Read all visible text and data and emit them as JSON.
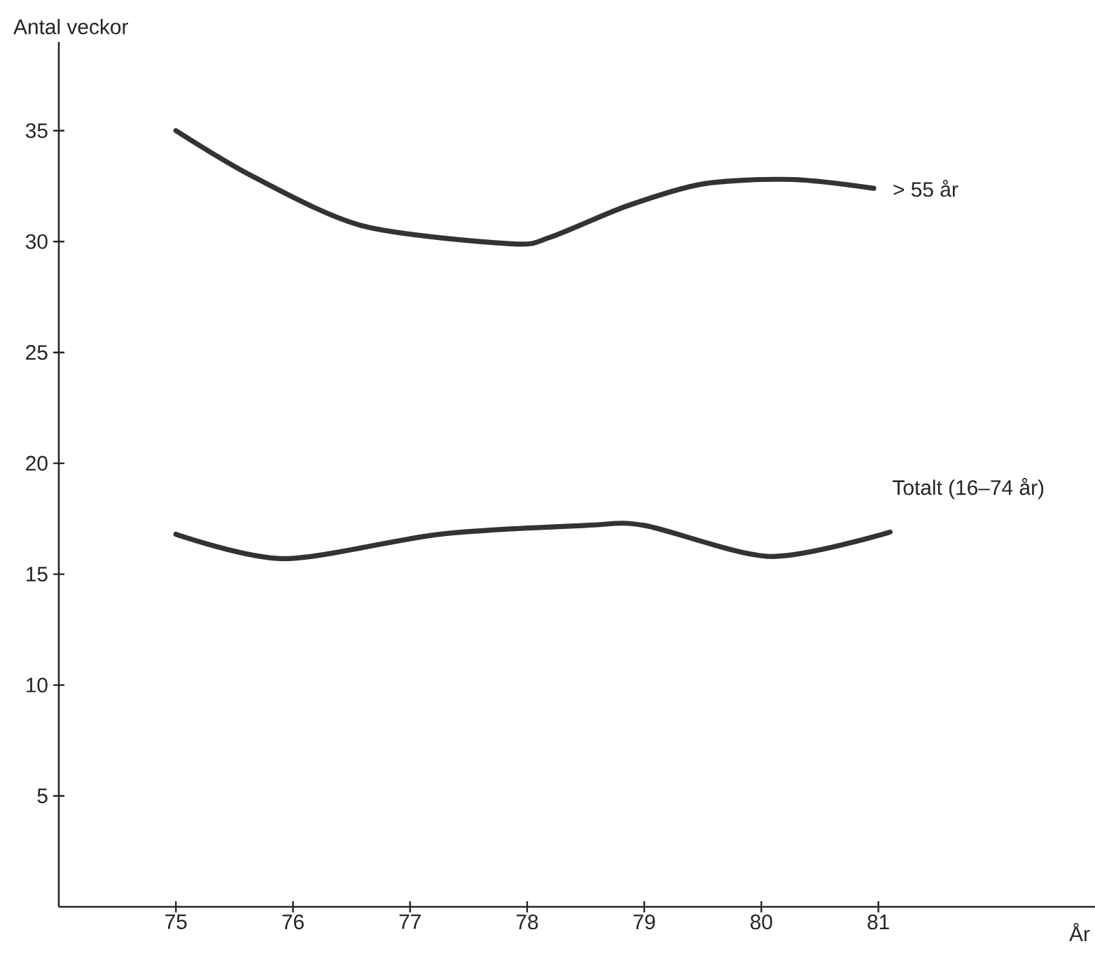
{
  "chart_data": {
    "type": "line",
    "ylabel": "Antal veckor",
    "xlabel": "År",
    "xlim": [
      74,
      82.85
    ],
    "ylim": [
      0,
      39
    ],
    "xticks": [
      75,
      76,
      77,
      78,
      79,
      80,
      81
    ],
    "yticks": [
      5,
      10,
      15,
      20,
      25,
      30,
      35
    ],
    "grid": false,
    "legend": false,
    "marker": "none",
    "line_style": "solid",
    "series": [
      {
        "name": "> 55 år",
        "color": "#333333",
        "x": [
          75,
          75.67,
          76.6,
          77.86,
          78.2,
          78.85,
          79.5,
          80.26,
          80.96
        ],
        "values": [
          35,
          32.9,
          30.7,
          29.9,
          30.2,
          31.6,
          32.6,
          32.8,
          32.4
        ]
      },
      {
        "name": "Totalt (16–74 år)",
        "color": "#333333",
        "x": [
          75,
          75.92,
          77.25,
          78.5,
          79,
          80.08,
          81.1
        ],
        "values": [
          16.8,
          15.7,
          16.8,
          17.2,
          17.2,
          15.8,
          16.9
        ]
      }
    ]
  }
}
